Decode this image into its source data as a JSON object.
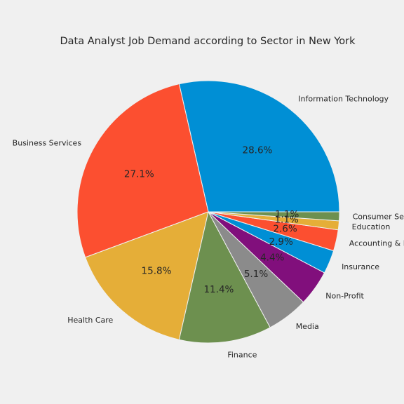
{
  "chart_data": {
    "type": "pie",
    "title": "Data Analyst Job Demand according to Sector in New York",
    "categories": [
      "Information Technology",
      "Business Services",
      "Health Care",
      "Finance",
      "Media",
      "Non-Profit",
      "Insurance",
      "Accounting & Legal",
      "Education",
      "Consumer Services"
    ],
    "values": [
      28.6,
      27.1,
      15.8,
      11.4,
      5.1,
      4.4,
      2.9,
      2.6,
      1.1,
      1.1
    ],
    "percent_labels": [
      "28.6%",
      "27.1%",
      "15.8%",
      "11.4%",
      "5.1%",
      "4.4%",
      "2.9%",
      "2.6%",
      "1.1%",
      "1.1%"
    ],
    "colors": [
      "#008fd5",
      "#fc4f30",
      "#e5ae38",
      "#6d904f",
      "#8b8b8b",
      "#810f7c",
      "#008fd5",
      "#fc4f30",
      "#e5ae38",
      "#6d904f"
    ],
    "start_angle": "0 degrees (3 o'clock), counterclockwise",
    "legend": "none"
  }
}
